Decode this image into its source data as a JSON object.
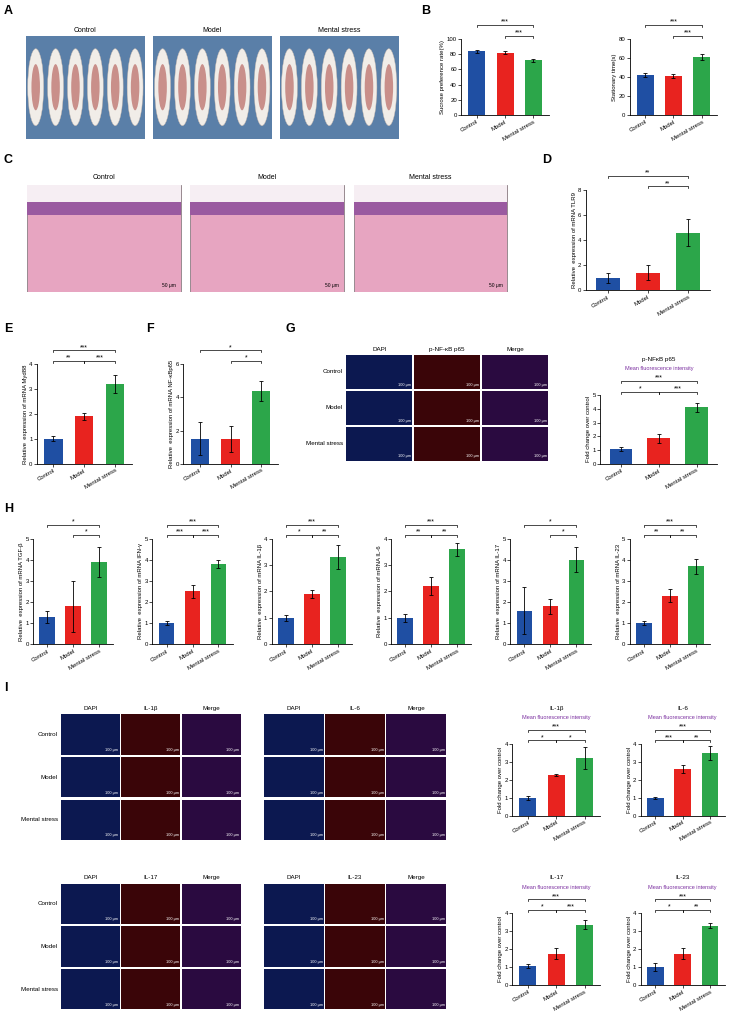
{
  "panel_labels": [
    "A",
    "B",
    "C",
    "D",
    "E",
    "F",
    "G",
    "H",
    "I"
  ],
  "images": [
    {
      "columns": [
        "Control",
        "Model",
        "Mental stress"
      ]
    },
    {
      "columns": [
        "Control",
        "Model",
        "Mental stress"
      ],
      "scale_bar": "50 μm"
    },
    {
      "columns": [
        "DAPI",
        "p-NF-κB p65",
        "Merge"
      ],
      "rows": [
        "Control",
        "Model",
        "Mental stress"
      ],
      "scale_bar": "100 μm"
    },
    {
      "columns": [
        "DAPI",
        "IL-1β",
        "Merge"
      ],
      "rows": [
        "Control",
        "Model",
        "Mental stress"
      ],
      "scale_bar": "100 μm"
    },
    {
      "columns": [
        "DAPI",
        "IL-6",
        "Merge"
      ],
      "scale_bar": "100 μm"
    },
    {
      "columns": [
        "DAPI",
        "IL-17",
        "Merge"
      ],
      "rows": [
        "Control",
        "Model",
        "Mental stress"
      ],
      "scale_bar": "100 μm"
    },
    {
      "columns": [
        "DAPI",
        "IL-23",
        "Merge"
      ],
      "scale_bar": "100 μm"
    }
  ],
  "chart_data": [
    {
      "type": "bar",
      "y_label": "Sucrose preference rate(%)",
      "categories": [
        "Control",
        "Model",
        "Mental stress"
      ],
      "values": [
        84,
        82,
        72
      ],
      "errors": [
        2,
        2,
        2
      ],
      "colors": [
        "#1f4fa3",
        "#e8231f",
        "#2ca64a"
      ],
      "ylim": [
        0,
        100
      ],
      "yticks": [
        0,
        20,
        40,
        60,
        80,
        100
      ],
      "significance": [
        {
          "pair": [
            "Control",
            "Mental stress"
          ],
          "label": "***"
        },
        {
          "pair": [
            "Model",
            "Mental stress"
          ],
          "label": "***"
        }
      ]
    },
    {
      "type": "bar",
      "y_label": "Stationary time(s)",
      "categories": [
        "Control",
        "Model",
        "Mental stress"
      ],
      "values": [
        42,
        41,
        61
      ],
      "errors": [
        2,
        2,
        3
      ],
      "colors": [
        "#1f4fa3",
        "#e8231f",
        "#2ca64a"
      ],
      "ylim": [
        0,
        80
      ],
      "yticks": [
        0,
        20,
        40,
        60,
        80
      ],
      "significance": [
        {
          "pair": [
            "Control",
            "Mental stress"
          ],
          "label": "***"
        },
        {
          "pair": [
            "Model",
            "Mental stress"
          ],
          "label": "***"
        }
      ]
    },
    {
      "type": "bar",
      "y_label": "Relative  expression of mRNA TLR9",
      "categories": [
        "Control",
        "Model",
        "Mental stress"
      ],
      "values": [
        1.0,
        1.4,
        4.6
      ],
      "errors": [
        0.4,
        0.6,
        1.1
      ],
      "colors": [
        "#1f4fa3",
        "#e8231f",
        "#2ca64a"
      ],
      "ylim": [
        0,
        8
      ],
      "yticks": [
        0,
        2,
        4,
        6,
        8
      ],
      "significance": [
        {
          "pair": [
            "Control",
            "Mental stress"
          ],
          "label": "**"
        },
        {
          "pair": [
            "Model",
            "Mental stress"
          ],
          "label": "**"
        }
      ]
    },
    {
      "type": "bar",
      "y_label": "Relative  expression of mRNA Myd88",
      "categories": [
        "Control",
        "Model",
        "Mental stress"
      ],
      "values": [
        1.0,
        1.9,
        3.2
      ],
      "errors": [
        0.1,
        0.15,
        0.35
      ],
      "colors": [
        "#1f4fa3",
        "#e8231f",
        "#2ca64a"
      ],
      "ylim": [
        0,
        4
      ],
      "yticks": [
        0,
        1,
        2,
        3,
        4
      ],
      "significance": [
        {
          "pair": [
            "Control",
            "Model"
          ],
          "label": "**"
        },
        {
          "pair": [
            "Control",
            "Mental stress"
          ],
          "label": "***"
        },
        {
          "pair": [
            "Model",
            "Mental stress"
          ],
          "label": "***"
        }
      ]
    },
    {
      "type": "bar",
      "y_label": "Relative  expression of mRNA NF-κBp65",
      "categories": [
        "Control",
        "Model",
        "Mental stress"
      ],
      "values": [
        1.5,
        1.5,
        4.4
      ],
      "errors": [
        1.0,
        0.8,
        0.6
      ],
      "colors": [
        "#1f4fa3",
        "#e8231f",
        "#2ca64a"
      ],
      "ylim": [
        0,
        6
      ],
      "yticks": [
        0,
        2,
        4,
        6
      ],
      "significance": [
        {
          "pair": [
            "Control",
            "Mental stress"
          ],
          "label": "*"
        },
        {
          "pair": [
            "Model",
            "Mental stress"
          ],
          "label": "*"
        }
      ]
    },
    {
      "type": "bar",
      "title": "p-NFκB p65",
      "subtitle": "Mean fluorescence intensity",
      "y_label": "Fold change over control",
      "categories": [
        "Control",
        "Model",
        "Mental stress"
      ],
      "values": [
        1.1,
        1.85,
        4.1
      ],
      "errors": [
        0.15,
        0.35,
        0.35
      ],
      "colors": [
        "#1f4fa3",
        "#e8231f",
        "#2ca64a"
      ],
      "ylim": [
        0,
        5
      ],
      "yticks": [
        0,
        1,
        2,
        3,
        4,
        5
      ],
      "significance": [
        {
          "pair": [
            "Control",
            "Model"
          ],
          "label": "*"
        },
        {
          "pair": [
            "Control",
            "Mental stress"
          ],
          "label": "***"
        },
        {
          "pair": [
            "Model",
            "Mental stress"
          ],
          "label": "***"
        }
      ]
    },
    {
      "type": "bar",
      "y_label": "Relative  expression of mRNA TGF-β",
      "categories": [
        "Control",
        "Model",
        "Mental stress"
      ],
      "values": [
        1.3,
        1.8,
        3.9
      ],
      "errors": [
        0.3,
        1.2,
        0.7
      ],
      "colors": [
        "#1f4fa3",
        "#e8231f",
        "#2ca64a"
      ],
      "ylim": [
        0,
        5
      ],
      "yticks": [
        0,
        1,
        2,
        3,
        4,
        5
      ],
      "significance": [
        {
          "pair": [
            "Control",
            "Mental stress"
          ],
          "label": "*"
        },
        {
          "pair": [
            "Model",
            "Mental stress"
          ],
          "label": "*"
        }
      ]
    },
    {
      "type": "bar",
      "y_label": "Relative  expression of mRNA IFN-γ",
      "categories": [
        "Control",
        "Model",
        "Mental stress"
      ],
      "values": [
        1.0,
        2.5,
        3.8
      ],
      "errors": [
        0.1,
        0.3,
        0.2
      ],
      "colors": [
        "#1f4fa3",
        "#e8231f",
        "#2ca64a"
      ],
      "ylim": [
        0,
        5
      ],
      "yticks": [
        0,
        1,
        2,
        3,
        4,
        5
      ],
      "significance": [
        {
          "pair": [
            "Control",
            "Model"
          ],
          "label": "***"
        },
        {
          "pair": [
            "Control",
            "Mental stress"
          ],
          "label": "***"
        },
        {
          "pair": [
            "Model",
            "Mental stress"
          ],
          "label": "***"
        }
      ]
    },
    {
      "type": "bar",
      "y_label": "Relative  expression of mRNA IL-1β",
      "categories": [
        "Control",
        "Model",
        "Mental stress"
      ],
      "values": [
        1.0,
        1.9,
        3.3
      ],
      "errors": [
        0.1,
        0.15,
        0.45
      ],
      "colors": [
        "#1f4fa3",
        "#e8231f",
        "#2ca64a"
      ],
      "ylim": [
        0,
        4
      ],
      "yticks": [
        0,
        1,
        2,
        3,
        4
      ],
      "significance": [
        {
          "pair": [
            "Control",
            "Model"
          ],
          "label": "*"
        },
        {
          "pair": [
            "Control",
            "Mental stress"
          ],
          "label": "***"
        },
        {
          "pair": [
            "Model",
            "Mental stress"
          ],
          "label": "**"
        }
      ]
    },
    {
      "type": "bar",
      "y_label": "Relative  expression of mRNA IL-6",
      "categories": [
        "Control",
        "Model",
        "Mental stress"
      ],
      "values": [
        1.0,
        2.2,
        3.6
      ],
      "errors": [
        0.15,
        0.35,
        0.25
      ],
      "colors": [
        "#1f4fa3",
        "#e8231f",
        "#2ca64a"
      ],
      "ylim": [
        0,
        4
      ],
      "yticks": [
        0,
        1,
        2,
        3,
        4
      ],
      "significance": [
        {
          "pair": [
            "Control",
            "Model"
          ],
          "label": "**"
        },
        {
          "pair": [
            "Control",
            "Mental stress"
          ],
          "label": "***"
        },
        {
          "pair": [
            "Model",
            "Mental stress"
          ],
          "label": "**"
        }
      ]
    },
    {
      "type": "bar",
      "y_label": "Relative  expression of mRNA IL-17",
      "categories": [
        "Control",
        "Model",
        "Mental stress"
      ],
      "values": [
        1.6,
        1.8,
        4.0
      ],
      "errors": [
        1.1,
        0.35,
        0.6
      ],
      "colors": [
        "#1f4fa3",
        "#e8231f",
        "#2ca64a"
      ],
      "ylim": [
        0,
        5
      ],
      "yticks": [
        0,
        1,
        2,
        3,
        4,
        5
      ],
      "significance": [
        {
          "pair": [
            "Control",
            "Mental stress"
          ],
          "label": "*"
        },
        {
          "pair": [
            "Model",
            "Mental stress"
          ],
          "label": "*"
        }
      ]
    },
    {
      "type": "bar",
      "y_label": "Relative  expression of mRNA IL-23",
      "categories": [
        "Control",
        "Model",
        "Mental stress"
      ],
      "values": [
        1.0,
        2.3,
        3.7
      ],
      "errors": [
        0.1,
        0.3,
        0.35
      ],
      "colors": [
        "#1f4fa3",
        "#e8231f",
        "#2ca64a"
      ],
      "ylim": [
        0,
        5
      ],
      "yticks": [
        0,
        1,
        2,
        3,
        4,
        5
      ],
      "significance": [
        {
          "pair": [
            "Control",
            "Model"
          ],
          "label": "**"
        },
        {
          "pair": [
            "Control",
            "Mental stress"
          ],
          "label": "***"
        },
        {
          "pair": [
            "Model",
            "Mental stress"
          ],
          "label": "**"
        }
      ]
    },
    {
      "type": "bar",
      "title": "IL-1β",
      "subtitle": "Mean fluorescence intensity",
      "y_label": "Fold change over control",
      "categories": [
        "Control",
        "Model",
        "Mental stress"
      ],
      "values": [
        1.0,
        2.25,
        3.2
      ],
      "errors": [
        0.1,
        0.05,
        0.6
      ],
      "colors": [
        "#1f4fa3",
        "#e8231f",
        "#2ca64a"
      ],
      "ylim": [
        0,
        4
      ],
      "yticks": [
        0,
        1,
        2,
        3,
        4
      ],
      "significance": [
        {
          "pair": [
            "Control",
            "Model"
          ],
          "label": "*"
        },
        {
          "pair": [
            "Control",
            "Mental stress"
          ],
          "label": "***"
        },
        {
          "pair": [
            "Model",
            "Mental stress"
          ],
          "label": "*"
        }
      ]
    },
    {
      "type": "bar",
      "title": "IL-6",
      "subtitle": "Mean fluorescence intensity",
      "y_label": "Fold change over control",
      "categories": [
        "Control",
        "Model",
        "Mental stress"
      ],
      "values": [
        1.0,
        2.6,
        3.5
      ],
      "errors": [
        0.05,
        0.2,
        0.4
      ],
      "colors": [
        "#1f4fa3",
        "#e8231f",
        "#2ca64a"
      ],
      "ylim": [
        0,
        4
      ],
      "yticks": [
        0,
        1,
        2,
        3,
        4
      ],
      "significance": [
        {
          "pair": [
            "Control",
            "Model"
          ],
          "label": "***"
        },
        {
          "pair": [
            "Control",
            "Mental stress"
          ],
          "label": "***"
        },
        {
          "pair": [
            "Model",
            "Mental stress"
          ],
          "label": "**"
        }
      ]
    },
    {
      "type": "bar",
      "title": "IL-17",
      "subtitle": "Mean fluorescence intensity",
      "y_label": "Fold change over control",
      "categories": [
        "Control",
        "Model",
        "Mental stress"
      ],
      "values": [
        1.05,
        1.75,
        3.35
      ],
      "errors": [
        0.1,
        0.3,
        0.25
      ],
      "colors": [
        "#1f4fa3",
        "#e8231f",
        "#2ca64a"
      ],
      "ylim": [
        0,
        4
      ],
      "yticks": [
        0,
        1,
        2,
        3,
        4
      ],
      "significance": [
        {
          "pair": [
            "Control",
            "Model"
          ],
          "label": "*"
        },
        {
          "pair": [
            "Control",
            "Mental stress"
          ],
          "label": "***"
        },
        {
          "pair": [
            "Model",
            "Mental stress"
          ],
          "label": "***"
        }
      ]
    },
    {
      "type": "bar",
      "title": "IL-23",
      "subtitle": "Mean fluorescence intensity",
      "y_label": "Fold change over control",
      "categories": [
        "Control",
        "Model",
        "Mental stress"
      ],
      "values": [
        1.0,
        1.75,
        3.3
      ],
      "errors": [
        0.2,
        0.3,
        0.15
      ],
      "colors": [
        "#1f4fa3",
        "#e8231f",
        "#2ca64a"
      ],
      "ylim": [
        0,
        4
      ],
      "yticks": [
        0,
        1,
        2,
        3,
        4
      ],
      "significance": [
        {
          "pair": [
            "Control",
            "Model"
          ],
          "label": "*"
        },
        {
          "pair": [
            "Control",
            "Mental stress"
          ],
          "label": "***"
        },
        {
          "pair": [
            "Model",
            "Mental stress"
          ],
          "label": "**"
        }
      ]
    }
  ]
}
